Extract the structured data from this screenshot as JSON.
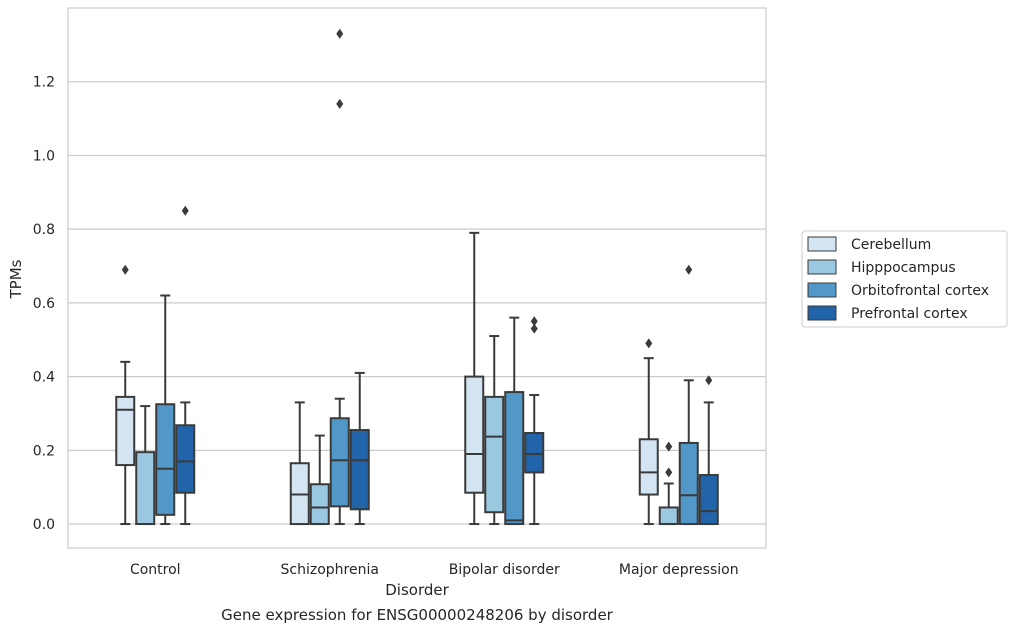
{
  "caption": "Gene expression for ENSG00000248206 by disorder",
  "chart_data": {
    "type": "box",
    "xlabel": "Disorder",
    "ylabel": "TPMs",
    "ylim": [
      -0.065,
      1.4
    ],
    "yticks": [
      0.0,
      0.2,
      0.4,
      0.6,
      0.8,
      1.0,
      1.2
    ],
    "ytick_labels": [
      "0.0",
      "0.2",
      "0.4",
      "0.6",
      "0.8",
      "1.0",
      "1.2"
    ],
    "grid": "horizontal",
    "legend_position": "right",
    "categories": [
      "Control",
      "Schizophrenia",
      "Bipolar disorder",
      "Major depression"
    ],
    "series": [
      {
        "name": "Cerebellum",
        "color": "#d3e4f3",
        "boxes": [
          {
            "whislo": 0.0,
            "q1": 0.16,
            "med": 0.31,
            "q3": 0.345,
            "whishi": 0.44,
            "fliers": [
              0.69
            ]
          },
          {
            "whislo": 0.0,
            "q1": 0.0,
            "med": 0.08,
            "q3": 0.165,
            "whishi": 0.33,
            "fliers": []
          },
          {
            "whislo": 0.0,
            "q1": 0.085,
            "med": 0.19,
            "q3": 0.4,
            "whishi": 0.79,
            "fliers": []
          },
          {
            "whislo": 0.0,
            "q1": 0.08,
            "med": 0.14,
            "q3": 0.23,
            "whishi": 0.45,
            "fliers": [
              0.49
            ]
          }
        ]
      },
      {
        "name": "Hipppocampus",
        "color": "#9ac8e0",
        "boxes": [
          {
            "whislo": 0.0,
            "q1": 0.0,
            "med": 0.0,
            "q3": 0.195,
            "whishi": 0.32,
            "fliers": []
          },
          {
            "whislo": 0.0,
            "q1": 0.0,
            "med": 0.045,
            "q3": 0.108,
            "whishi": 0.24,
            "fliers": []
          },
          {
            "whislo": 0.0,
            "q1": 0.032,
            "med": 0.237,
            "q3": 0.345,
            "whishi": 0.51,
            "fliers": []
          },
          {
            "whislo": 0.0,
            "q1": 0.0,
            "med": 0.0,
            "q3": 0.045,
            "whishi": 0.11,
            "fliers": [
              0.14,
              0.21
            ]
          }
        ]
      },
      {
        "name": "Orbitofrontal cortex",
        "color": "#5198c8",
        "boxes": [
          {
            "whislo": 0.0,
            "q1": 0.025,
            "med": 0.15,
            "q3": 0.325,
            "whishi": 0.62,
            "fliers": []
          },
          {
            "whislo": 0.0,
            "q1": 0.048,
            "med": 0.173,
            "q3": 0.287,
            "whishi": 0.34,
            "fliers": [
              1.14,
              1.33
            ]
          },
          {
            "whislo": 0.0,
            "q1": 0.0,
            "med": 0.01,
            "q3": 0.358,
            "whishi": 0.56,
            "fliers": []
          },
          {
            "whislo": 0.0,
            "q1": 0.0,
            "med": 0.078,
            "q3": 0.22,
            "whishi": 0.39,
            "fliers": [
              0.69
            ]
          }
        ]
      },
      {
        "name": "Prefrontal cortex",
        "color": "#2164a9",
        "boxes": [
          {
            "whislo": 0.0,
            "q1": 0.085,
            "med": 0.17,
            "q3": 0.268,
            "whishi": 0.33,
            "fliers": [
              0.85
            ]
          },
          {
            "whislo": 0.0,
            "q1": 0.04,
            "med": 0.173,
            "q3": 0.255,
            "whishi": 0.41,
            "fliers": []
          },
          {
            "whislo": 0.0,
            "q1": 0.14,
            "med": 0.19,
            "q3": 0.247,
            "whishi": 0.35,
            "fliers": [
              0.53,
              0.55
            ]
          },
          {
            "whislo": 0.0,
            "q1": 0.0,
            "med": 0.035,
            "q3": 0.133,
            "whishi": 0.33,
            "fliers": [
              0.39
            ]
          }
        ]
      }
    ]
  }
}
